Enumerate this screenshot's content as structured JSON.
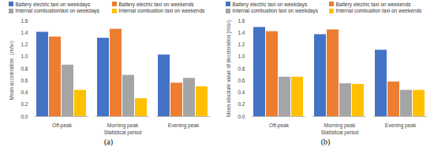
{
  "chart_data": [
    {
      "type": "bar",
      "title": "(a)",
      "xlabel": "Statistical period",
      "ylabel": "Mean acceleration（m/s²）",
      "categories": [
        "Off-peak",
        "Morning peak",
        "Evening peak"
      ],
      "series": [
        {
          "name": "Battery electric taxi on weekdays",
          "color": "#4472c4",
          "values": [
            1.41,
            1.31,
            1.03
          ]
        },
        {
          "name": "Battery electric taxi on weekends",
          "color": "#ed7d31",
          "values": [
            1.33,
            1.46,
            0.56
          ]
        },
        {
          "name": "Internal combustiontaxi on weekdays",
          "color": "#a5a5a5",
          "values": [
            0.86,
            0.69,
            0.64
          ]
        },
        {
          "name": "Internal combustion taxi on weekends",
          "color": "#ffc000",
          "values": [
            0.44,
            0.3,
            0.5
          ]
        }
      ],
      "ylim": [
        0,
        1.6
      ],
      "yticks": [
        {
          "value": 0,
          "label": "0.0"
        },
        {
          "value": 0.2,
          "label": "0.2"
        },
        {
          "value": 0.4,
          "label": "0.4"
        },
        {
          "value": 0.6,
          "label": "0.6"
        },
        {
          "value": 0.8,
          "label": "0.8"
        },
        {
          "value": 1,
          "label": "1.0"
        },
        {
          "value": 1.2,
          "label": "1.2"
        },
        {
          "value": 1.4,
          "label": "1.4"
        },
        {
          "value": 1.6,
          "label": "1.6"
        }
      ],
      "grid": false,
      "legend": "top"
    },
    {
      "type": "bar",
      "title": "(b)",
      "xlabel": "Statistical period",
      "ylabel": "Mean absolute value of deceleration (m/s²)",
      "categories": [
        "Off-peak",
        "Morning peak",
        "Evening peak"
      ],
      "series": [
        {
          "name": "Battery electric taxi on weekdays",
          "color": "#4472c4",
          "values": [
            1.49,
            1.37,
            1.11
          ]
        },
        {
          "name": "Battery electric taxi on weekends",
          "color": "#ed7d31",
          "values": [
            1.42,
            1.45,
            0.58
          ]
        },
        {
          "name": "Internal combustion taxi on weekdays",
          "color": "#a5a5a5",
          "values": [
            0.66,
            0.55,
            0.44
          ]
        },
        {
          "name": "Internal combustion taxi on weekends",
          "color": "#ffc000",
          "values": [
            0.66,
            0.54,
            0.44
          ]
        }
      ],
      "ylim": [
        0,
        1.6
      ],
      "yticks": [
        {
          "value": 0,
          "label": "0.0"
        },
        {
          "value": 0.2,
          "label": "0.2"
        },
        {
          "value": 0.4,
          "label": "0.4"
        },
        {
          "value": 0.6,
          "label": "0.6"
        },
        {
          "value": 0.8,
          "label": "0.8"
        },
        {
          "value": 1,
          "label": "1.0"
        },
        {
          "value": 1.2,
          "label": "1.2"
        },
        {
          "value": 1.4,
          "label": "1.4"
        },
        {
          "value": 1.6,
          "label": "1.6"
        }
      ],
      "grid": false,
      "legend": "top"
    }
  ]
}
